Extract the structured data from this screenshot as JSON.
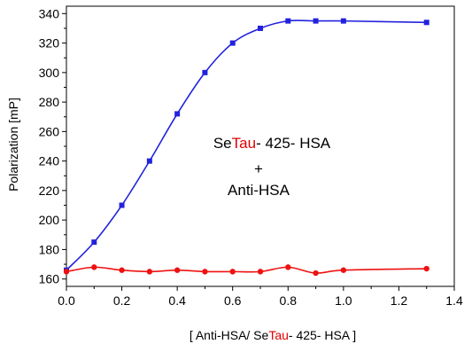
{
  "chart_data": {
    "type": "line",
    "title": "",
    "xlabel": {
      "parts": [
        {
          "text": "[ Anti-HSA/ Se",
          "color": "#000000"
        },
        {
          "text": "Tau",
          "color": "#e00000"
        },
        {
          "text": "- 425- HSA ]",
          "color": "#000000"
        }
      ]
    },
    "ylabel": "Polarization [mP]",
    "xlim": [
      0.0,
      1.4
    ],
    "ylim": [
      155,
      345
    ],
    "xticks": [
      "0.0",
      "0.2",
      "0.4",
      "0.6",
      "0.8",
      "1.0",
      "1.2",
      "1.4"
    ],
    "xtick_values": [
      0.0,
      0.2,
      0.4,
      0.6,
      0.8,
      1.0,
      1.2,
      1.4
    ],
    "yticks": [
      "160",
      "180",
      "200",
      "220",
      "240",
      "260",
      "280",
      "300",
      "320",
      "340"
    ],
    "ytick_values": [
      160,
      180,
      200,
      220,
      240,
      260,
      280,
      300,
      320,
      340
    ],
    "grid": false,
    "series": [
      {
        "color": "#2222dd",
        "marker": "square",
        "x": [
          0.0,
          0.1,
          0.2,
          0.3,
          0.4,
          0.5,
          0.6,
          0.7,
          0.8,
          0.9,
          1.0,
          1.3
        ],
        "y": [
          166,
          185,
          210,
          240,
          272,
          300,
          320,
          330,
          335,
          335,
          335,
          334
        ]
      },
      {
        "color": "#ee1111",
        "marker": "circle",
        "x": [
          0.0,
          0.1,
          0.2,
          0.3,
          0.4,
          0.5,
          0.6,
          0.7,
          0.8,
          0.9,
          1.0,
          1.3
        ],
        "y": [
          165,
          168,
          166,
          165,
          166,
          165,
          165,
          165,
          168,
          164,
          166,
          167
        ]
      }
    ],
    "annotation": {
      "line1": [
        {
          "text": "Se",
          "color": "#000000"
        },
        {
          "text": "Tau",
          "color": "#e00000"
        },
        {
          "text": "- 425- HSA",
          "color": "#000000"
        }
      ],
      "line2": "+",
      "line3": "Anti-HSA"
    }
  }
}
